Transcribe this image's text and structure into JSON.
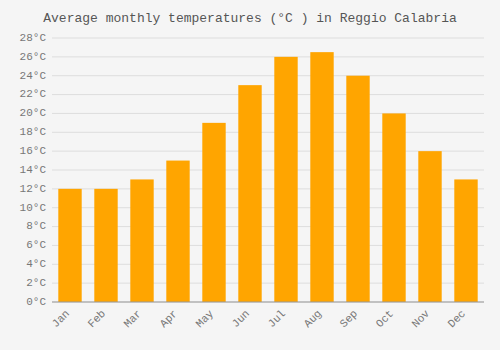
{
  "chart_data": {
    "type": "bar",
    "title": "Average monthly temperatures (°C ) in Reggio Calabria",
    "categories": [
      "Jan",
      "Feb",
      "Mar",
      "Apr",
      "May",
      "Jun",
      "Jul",
      "Aug",
      "Sep",
      "Oct",
      "Nov",
      "Dec"
    ],
    "values": [
      12,
      12,
      13,
      15,
      19,
      23,
      26,
      26.5,
      24,
      20,
      16,
      13
    ],
    "color": "#FFA500",
    "ylim": [
      0,
      28
    ],
    "yticks": [
      {
        "value": 0,
        "label": "0°C"
      },
      {
        "value": 2,
        "label": "2°C"
      },
      {
        "value": 4,
        "label": "4°C"
      },
      {
        "value": 6,
        "label": "6°C"
      },
      {
        "value": 8,
        "label": "8°C"
      },
      {
        "value": 10,
        "label": "10°C"
      },
      {
        "value": 12,
        "label": "12°C"
      },
      {
        "value": 14,
        "label": "14°C"
      },
      {
        "value": 16,
        "label": "16°C"
      },
      {
        "value": 18,
        "label": "18°C"
      },
      {
        "value": 20,
        "label": "20°C"
      },
      {
        "value": 22,
        "label": "22°C"
      },
      {
        "value": 24,
        "label": "24°C"
      },
      {
        "value": 26,
        "label": "26°C"
      },
      {
        "value": 28,
        "label": "28°C"
      }
    ],
    "grid": true
  }
}
